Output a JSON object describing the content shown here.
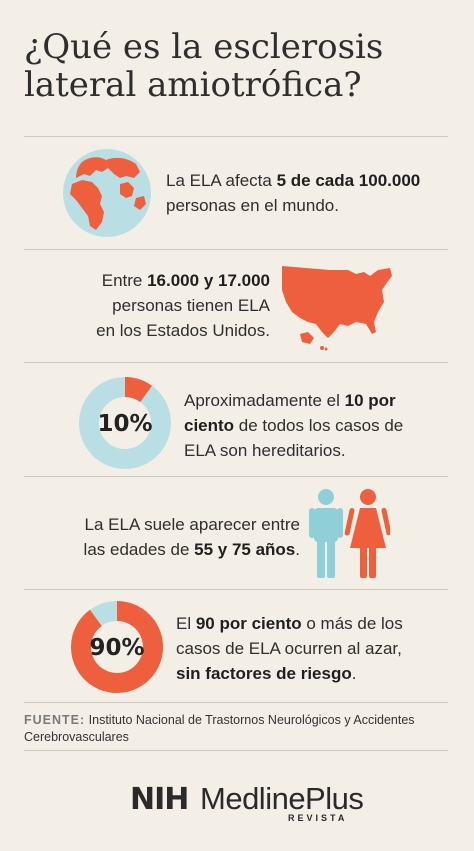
{
  "title": "¿Qué es la esclerosis lateral amiotrófica?",
  "stats": [
    {
      "icon": "globe-icon",
      "text_parts": [
        {
          "t": "La ELA afecta ",
          "b": false
        },
        {
          "t": "5 de cada 100.000",
          "b": true
        },
        {
          "t": " personas en el mundo.",
          "b": false
        }
      ]
    },
    {
      "icon": "usa-map-icon",
      "text_parts": [
        {
          "t": "Entre ",
          "b": false
        },
        {
          "t": "16.000 y 17.000",
          "b": true
        },
        {
          "t": " personas tienen ELA en los Estados Unidos.",
          "b": false
        }
      ]
    },
    {
      "icon": "donut-chart-10",
      "percent": 10,
      "label": "10%",
      "text_parts": [
        {
          "t": "Aproximadamente el ",
          "b": false
        },
        {
          "t": "10 por ciento",
          "b": true
        },
        {
          "t": " de todos los casos de ELA son hereditarios.",
          "b": false
        }
      ]
    },
    {
      "icon": "man-woman-icon",
      "text_parts": [
        {
          "t": "La ELA suele aparecer entre las edades de ",
          "b": false
        },
        {
          "t": "55 y 75 años",
          "b": true
        },
        {
          "t": ".",
          "b": false
        }
      ]
    },
    {
      "icon": "donut-chart-90",
      "percent": 90,
      "label": "90%",
      "text_parts": [
        {
          "t": "El ",
          "b": false
        },
        {
          "t": "90 por ciento",
          "b": true
        },
        {
          "t": " o más de los casos de ELA ocurren al azar, ",
          "b": false
        },
        {
          "t": "sin factores de riesgo",
          "b": true
        },
        {
          "t": ".",
          "b": false
        }
      ]
    }
  ],
  "source": {
    "label": "FUENTE:",
    "text": "Instituto Nacional de Trastornos Neurológicos y Accidentes Cerebrovasculares"
  },
  "logo": {
    "nih": "NIH",
    "medlineplus": "MedlinePlus",
    "revista": "REVISTA"
  },
  "colors": {
    "accent": "#ee5f3e",
    "light_blue": "#b9dfe4",
    "teal": "#8fcfd8",
    "background": "#f3efe6"
  }
}
